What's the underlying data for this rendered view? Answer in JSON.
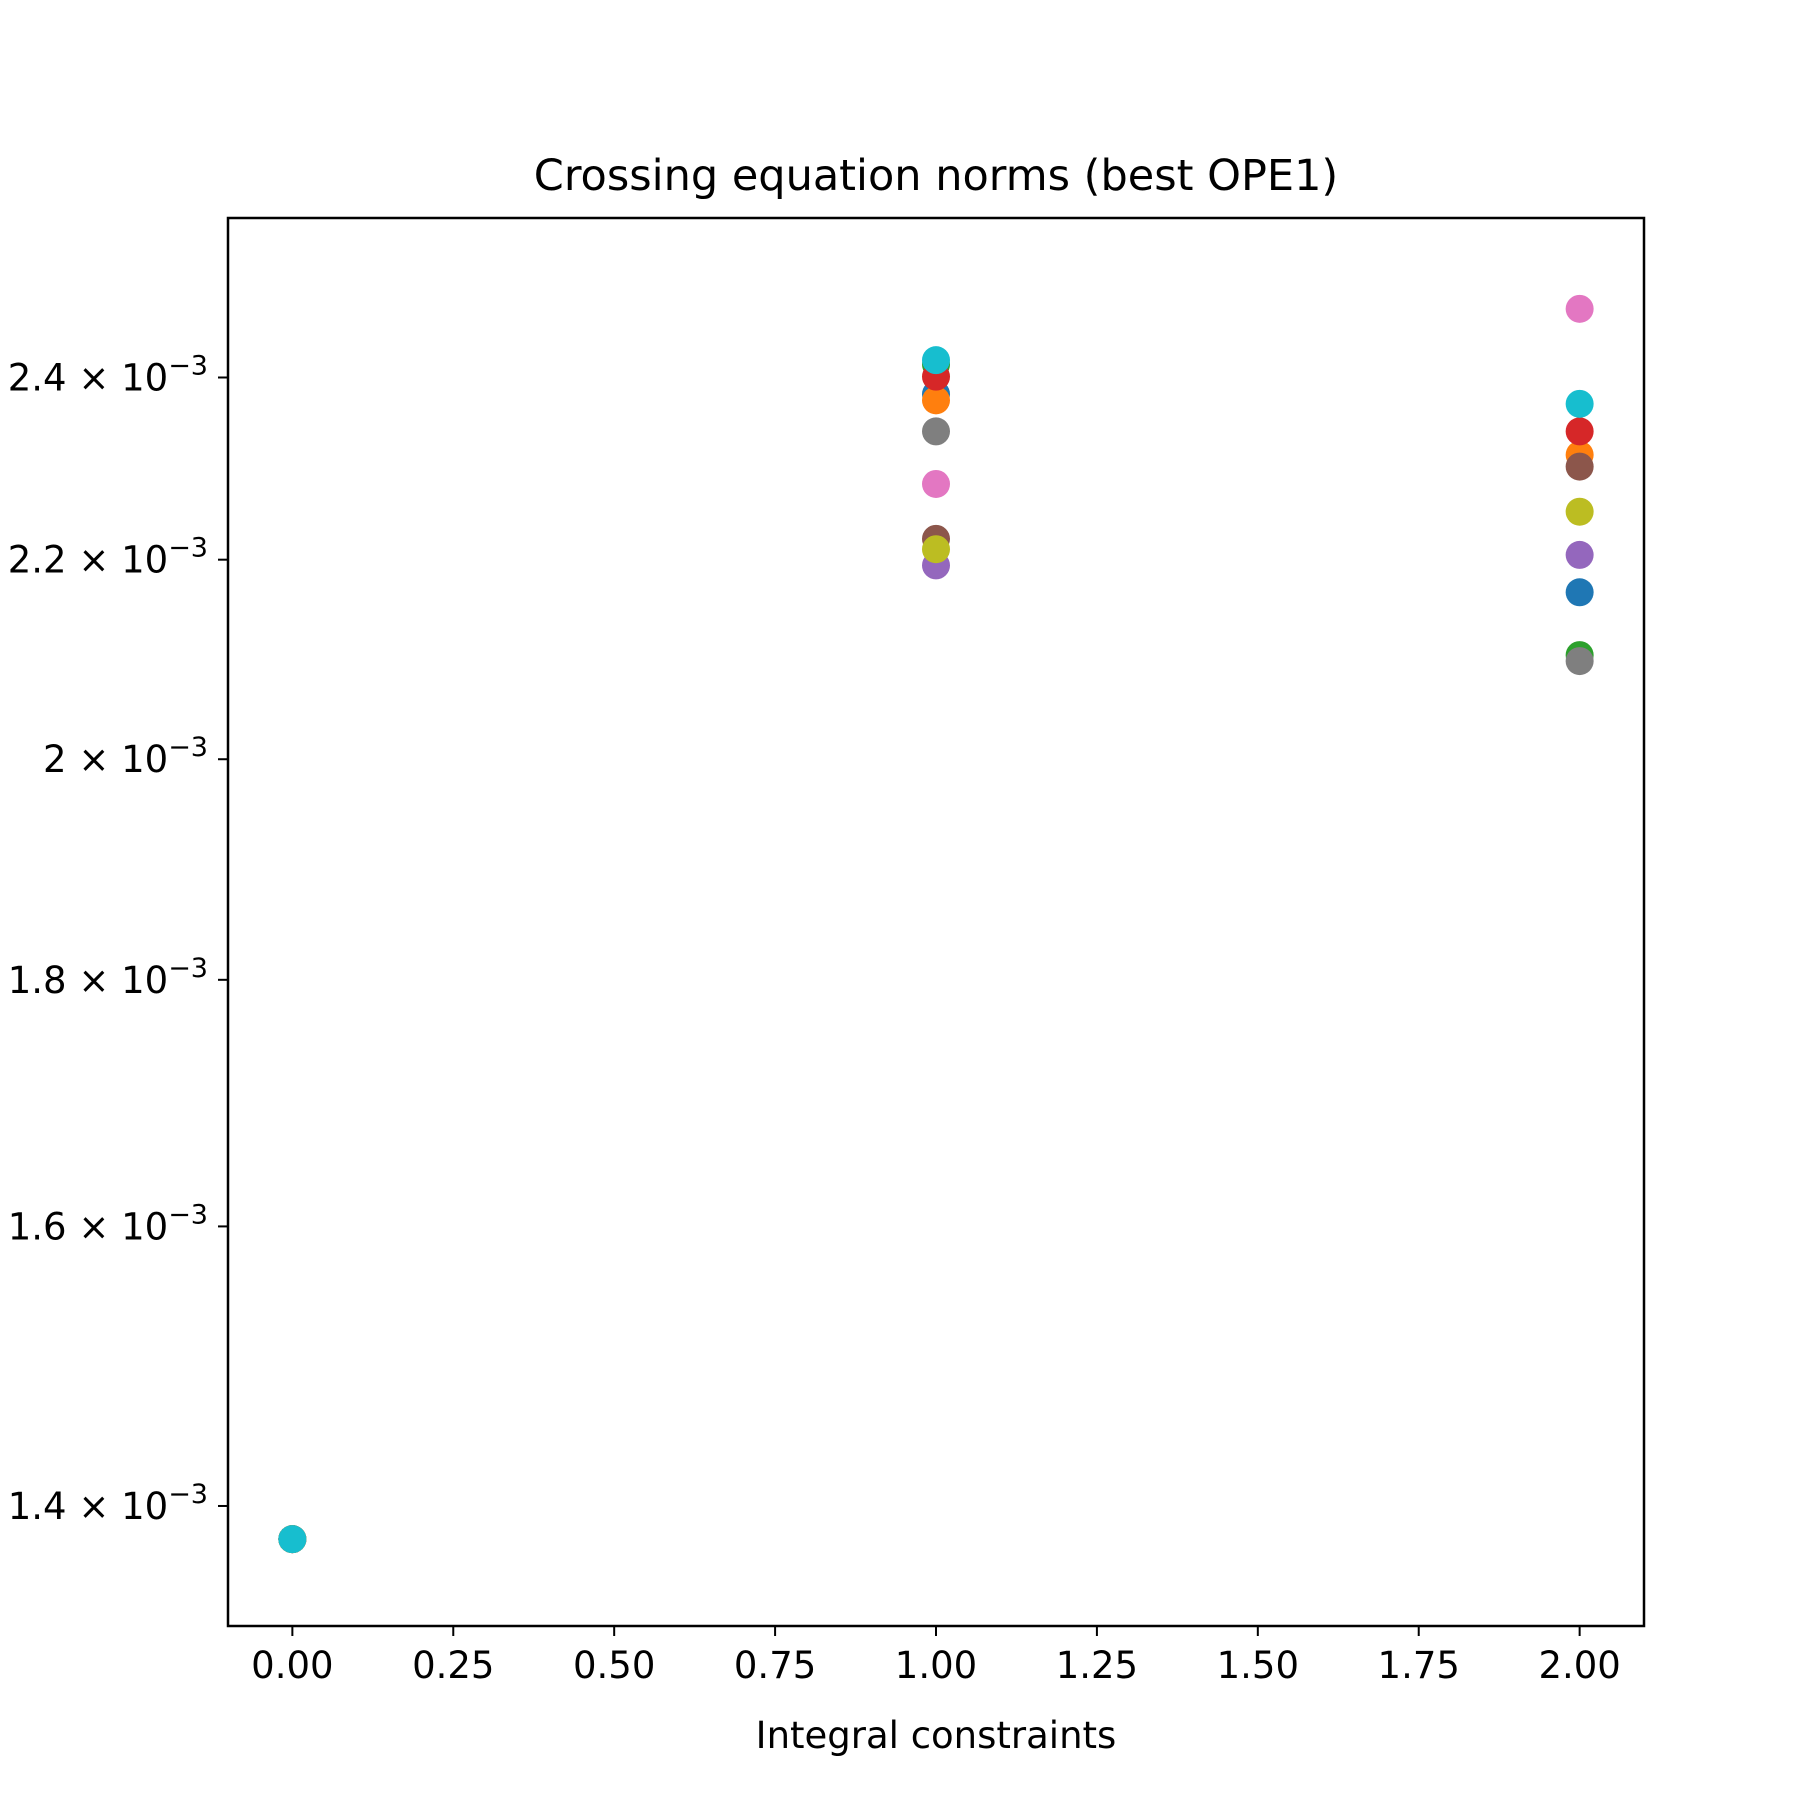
{
  "chart_data": {
    "type": "scatter",
    "title": "Crossing equation norms (best OPE1)",
    "xlabel": "Integral constraints",
    "ylabel": "",
    "y_scale": "log",
    "grid": false,
    "legend": "none",
    "xlim": [
      -0.1,
      2.1
    ],
    "ylim": [
      0.001322,
      0.00259
    ],
    "x_ticks": [
      {
        "value": 0.0,
        "label": "0.00"
      },
      {
        "value": 0.25,
        "label": "0.25"
      },
      {
        "value": 0.5,
        "label": "0.50"
      },
      {
        "value": 0.75,
        "label": "0.75"
      },
      {
        "value": 1.0,
        "label": "1.00"
      },
      {
        "value": 1.25,
        "label": "1.25"
      },
      {
        "value": 1.5,
        "label": "1.50"
      },
      {
        "value": 1.75,
        "label": "1.75"
      },
      {
        "value": 2.0,
        "label": "2.00"
      }
    ],
    "y_ticks": [
      {
        "value": 0.0014,
        "mantissa": "1.4",
        "exponent": "−3"
      },
      {
        "value": 0.0016,
        "mantissa": "1.6",
        "exponent": "−3"
      },
      {
        "value": 0.0018,
        "mantissa": "1.8",
        "exponent": "−3"
      },
      {
        "value": 0.002,
        "mantissa": "2",
        "exponent": "−3"
      },
      {
        "value": 0.0022,
        "mantissa": "2.2",
        "exponent": "−3"
      },
      {
        "value": 0.0024,
        "mantissa": "2.4",
        "exponent": "−3"
      }
    ],
    "series": [
      {
        "color": "#1f77b4",
        "points": [
          {
            "x": 0,
            "y": 0.001378
          },
          {
            "x": 1,
            "y": 0.002381
          },
          {
            "x": 2,
            "y": 0.002166
          }
        ]
      },
      {
        "color": "#ff7f0e",
        "points": [
          {
            "x": 0,
            "y": 0.001378
          },
          {
            "x": 1,
            "y": 0.002374
          },
          {
            "x": 2,
            "y": 0.002313
          }
        ]
      },
      {
        "color": "#2ca02c",
        "points": [
          {
            "x": 0,
            "y": 0.001378
          },
          {
            "x": 1,
            "y": 0.002415
          },
          {
            "x": 2,
            "y": 0.002102
          }
        ]
      },
      {
        "color": "#d62728",
        "points": [
          {
            "x": 0,
            "y": 0.001378
          },
          {
            "x": 1,
            "y": 0.002401
          },
          {
            "x": 2,
            "y": 0.002339
          }
        ]
      },
      {
        "color": "#9467bd",
        "points": [
          {
            "x": 0,
            "y": 0.001378
          },
          {
            "x": 1,
            "y": 0.002194
          },
          {
            "x": 2,
            "y": 0.002205
          }
        ]
      },
      {
        "color": "#8c564b",
        "points": [
          {
            "x": 0,
            "y": 0.001378
          },
          {
            "x": 1,
            "y": 0.002222
          },
          {
            "x": 2,
            "y": 0.0023
          }
        ]
      },
      {
        "color": "#e377c2",
        "points": [
          {
            "x": 0,
            "y": 0.001378
          },
          {
            "x": 1,
            "y": 0.002281
          },
          {
            "x": 2,
            "y": 0.00248
          }
        ]
      },
      {
        "color": "#7f7f7f",
        "points": [
          {
            "x": 0,
            "y": 0.001378
          },
          {
            "x": 1,
            "y": 0.002339
          },
          {
            "x": 2,
            "y": 0.002096
          }
        ]
      },
      {
        "color": "#bcbd22",
        "points": [
          {
            "x": 0,
            "y": 0.001378
          },
          {
            "x": 1,
            "y": 0.002211
          },
          {
            "x": 2,
            "y": 0.002251
          }
        ]
      },
      {
        "color": "#17becf",
        "points": [
          {
            "x": 0,
            "y": 0.001378
          },
          {
            "x": 1,
            "y": 0.00242
          },
          {
            "x": 2,
            "y": 0.00237
          }
        ]
      }
    ]
  }
}
